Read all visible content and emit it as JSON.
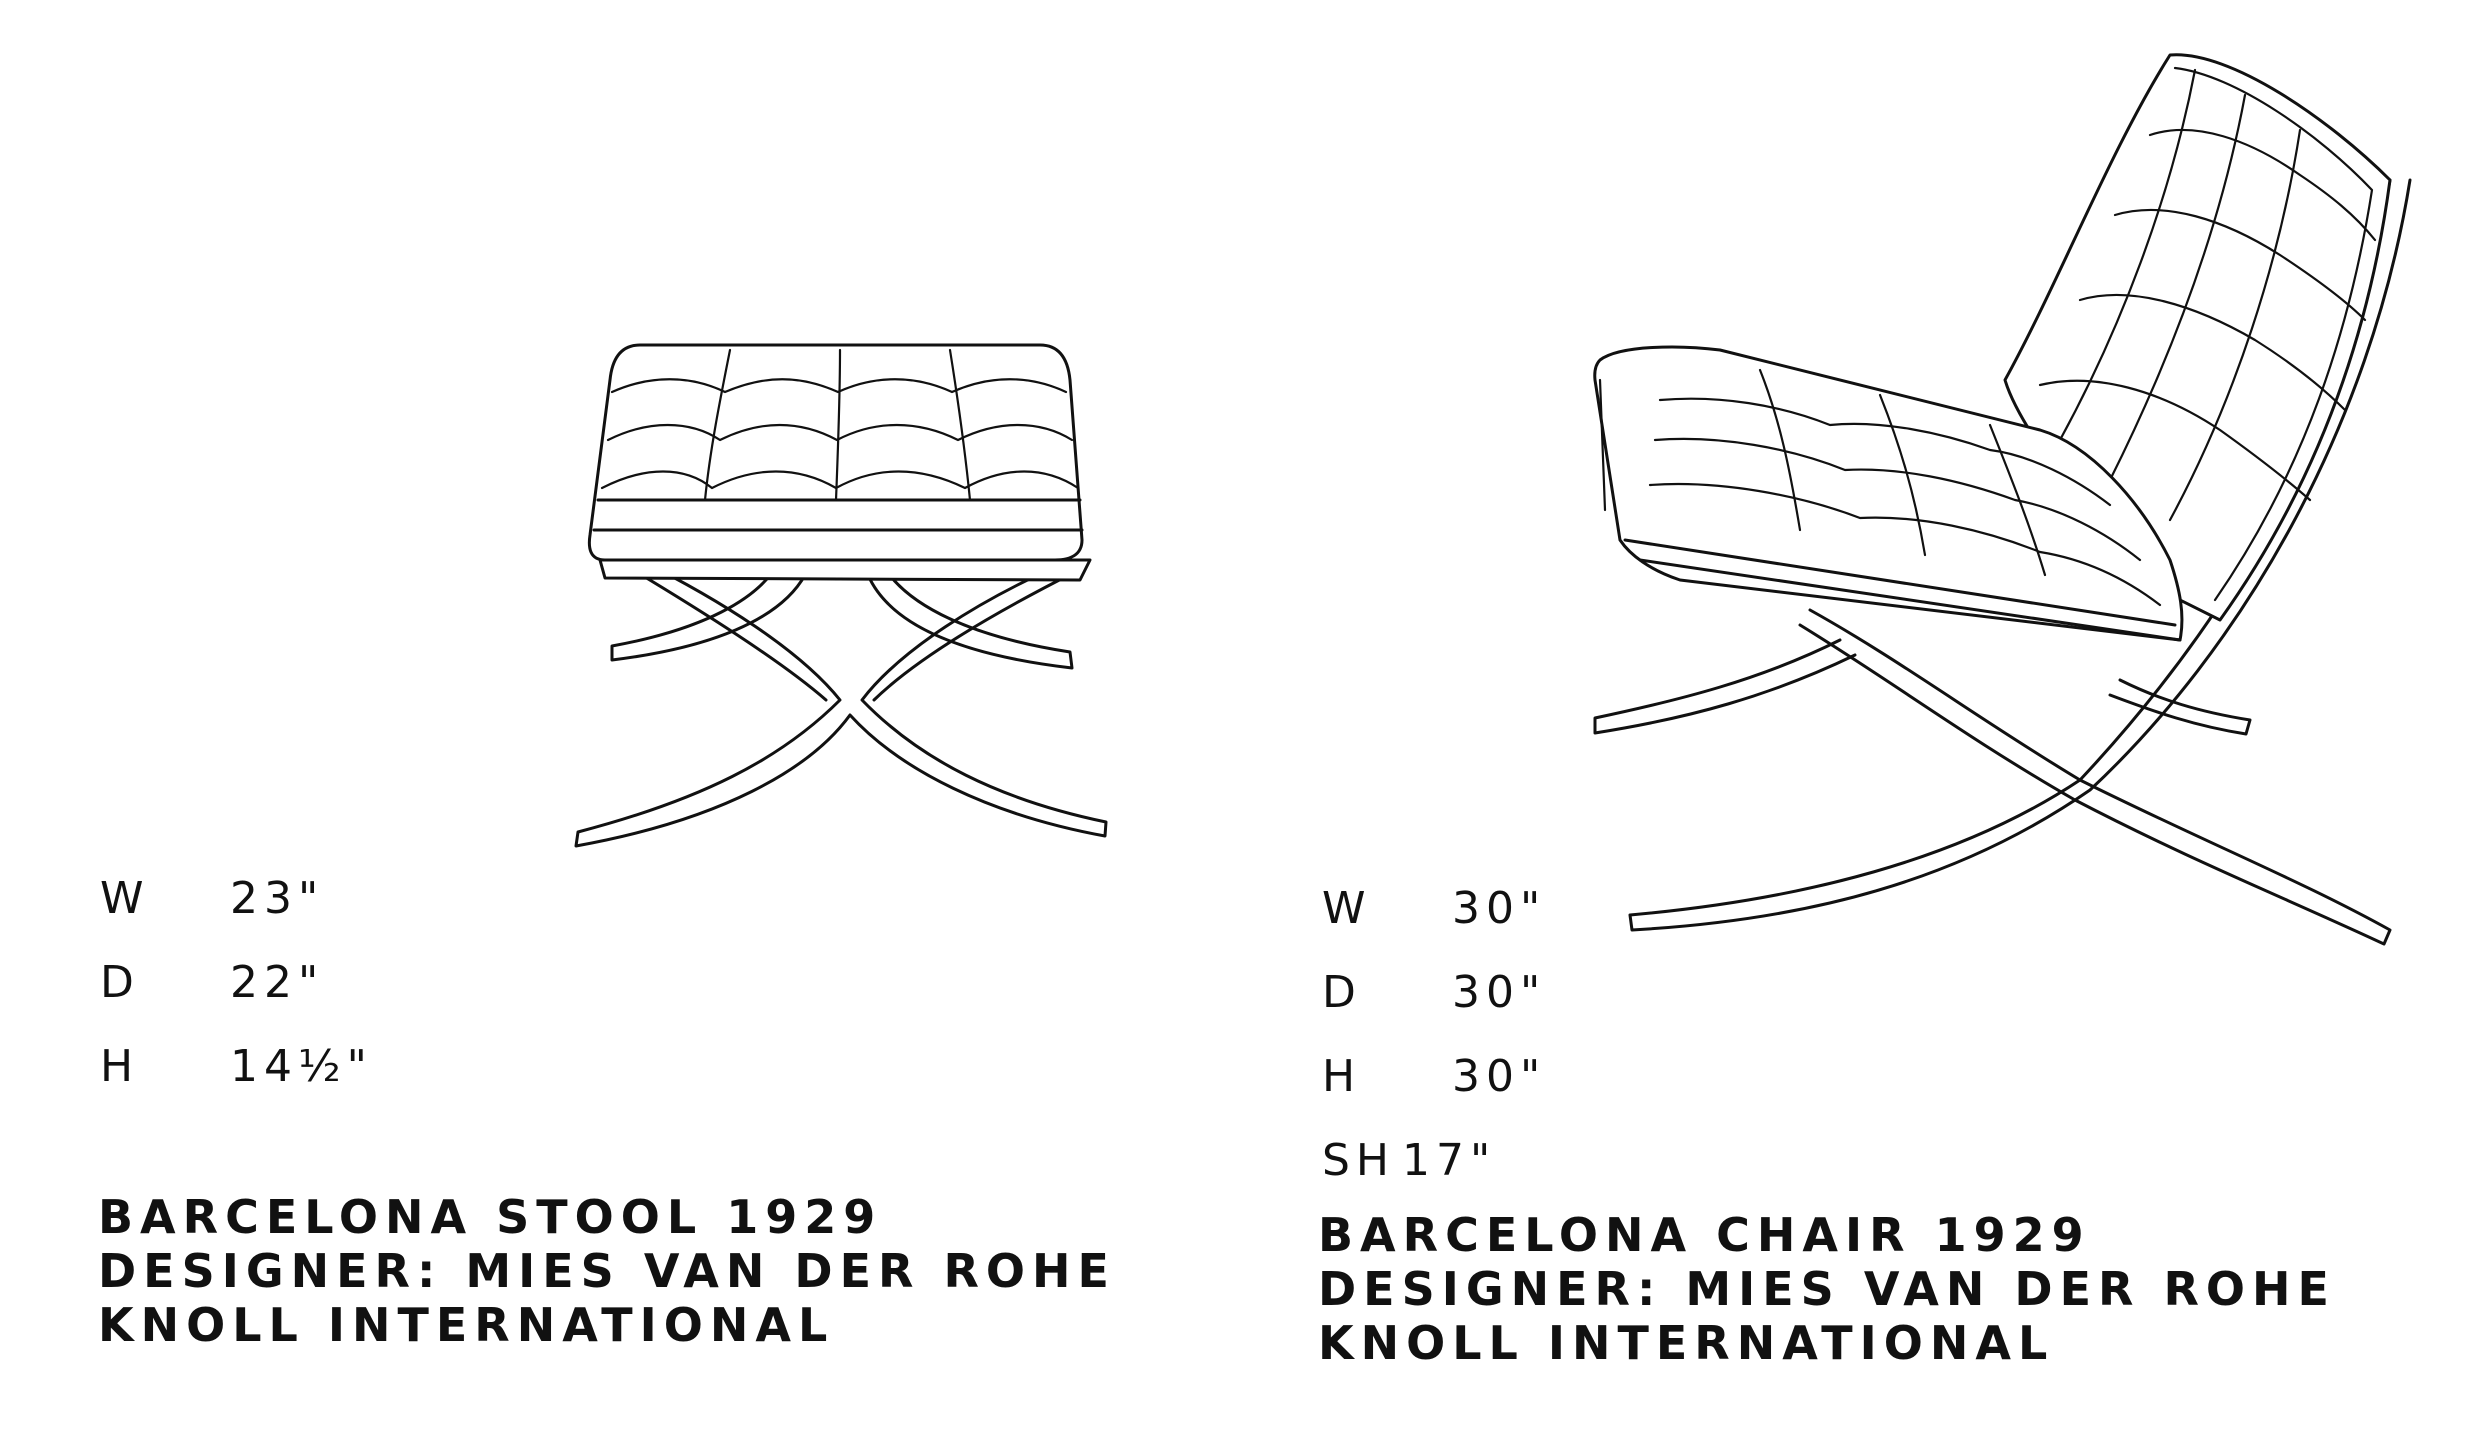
{
  "stool": {
    "specs": [
      {
        "key": "W",
        "value": "23\""
      },
      {
        "key": "D",
        "value": "22\""
      },
      {
        "key": "H",
        "value": "14½\""
      }
    ],
    "caption": {
      "line1": "BARCELONA STOOL 1929",
      "line2": "DESIGNER: MIES VAN DER ROHE",
      "line3": "KNOLL INTERNATIONAL"
    }
  },
  "chair": {
    "specs": [
      {
        "key": "W",
        "value": "30\""
      },
      {
        "key": "D",
        "value": "30\""
      },
      {
        "key": "H",
        "value": "30\""
      },
      {
        "key": "SH",
        "value": "17\""
      }
    ],
    "caption": {
      "line1": "BARCELONA CHAIR 1929",
      "line2": "DESIGNER: MIES VAN DER ROHE",
      "line3": "KNOLL INTERNATIONAL"
    }
  },
  "colors": {
    "ink": "#111111",
    "paper": "#ffffff"
  }
}
